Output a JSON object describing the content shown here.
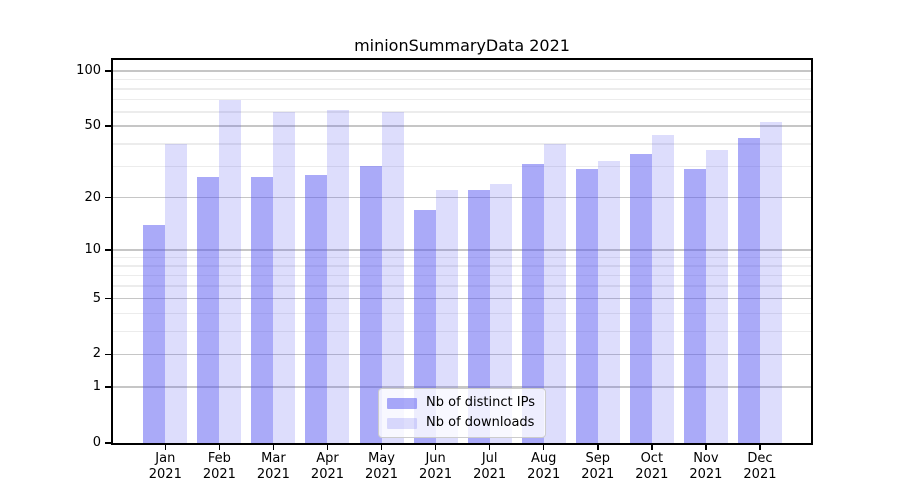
{
  "chart_data": {
    "type": "bar",
    "title": "minionSummaryData 2021",
    "year": "2021",
    "categories": [
      "Jan",
      "Feb",
      "Mar",
      "Apr",
      "May",
      "Jun",
      "Jul",
      "Aug",
      "Sep",
      "Oct",
      "Nov",
      "Dec"
    ],
    "series": [
      {
        "name": "Nb of distinct IPs",
        "color": "#5050f07c",
        "values": [
          14,
          26,
          26,
          27,
          30,
          17,
          22,
          31,
          29,
          35,
          29,
          43
        ]
      },
      {
        "name": "Nb of downloads",
        "color": "#5050f031",
        "values": [
          40,
          70,
          60,
          61,
          60,
          22,
          24,
          40,
          32,
          45,
          37,
          53
        ]
      }
    ],
    "yscale": "log1p",
    "ylim": [
      0,
      115
    ],
    "yticks_major": [
      100,
      50,
      20,
      10,
      5,
      2,
      1,
      0
    ],
    "yticks_minor": [
      3,
      4,
      6,
      7,
      8,
      9,
      30,
      40,
      60,
      70,
      80,
      90
    ],
    "grid": true,
    "legend_position": "lower center",
    "colors": {
      "grid_major": "#c6c6c6",
      "grid_minor": "#ececec",
      "axis": "#000000",
      "text": "#000000",
      "legend_background": "#ffffffcc",
      "legend_border": "#cccccc"
    }
  }
}
